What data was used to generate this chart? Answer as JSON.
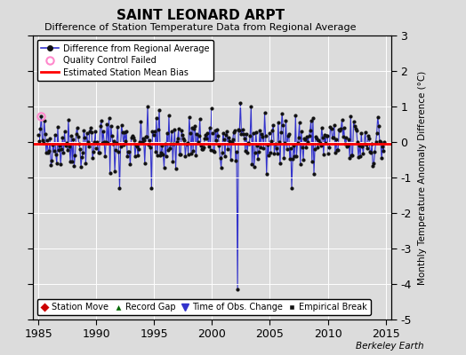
{
  "title": "SAINT LEONARD ARPT",
  "subtitle": "Difference of Station Temperature Data from Regional Average",
  "ylabel": "Monthly Temperature Anomaly Difference (°C)",
  "xlim": [
    1984.5,
    2015.5
  ],
  "ylim": [
    -5,
    3
  ],
  "yticks": [
    -5,
    -4,
    -3,
    -2,
    -1,
    0,
    1,
    2,
    3
  ],
  "xticks": [
    1985,
    1990,
    1995,
    2000,
    2005,
    2010,
    2015
  ],
  "bias_line": -0.05,
  "background_color": "#dcdcdc",
  "plot_bg_color": "#dcdcdc",
  "line_color": "#3333cc",
  "dot_color": "#111111",
  "bias_color": "#ff0000",
  "qc_fail_x": 1985.25,
  "qc_fail_y": 0.72,
  "berkeley_earth_text": "Berkeley Earth",
  "seed": 42
}
